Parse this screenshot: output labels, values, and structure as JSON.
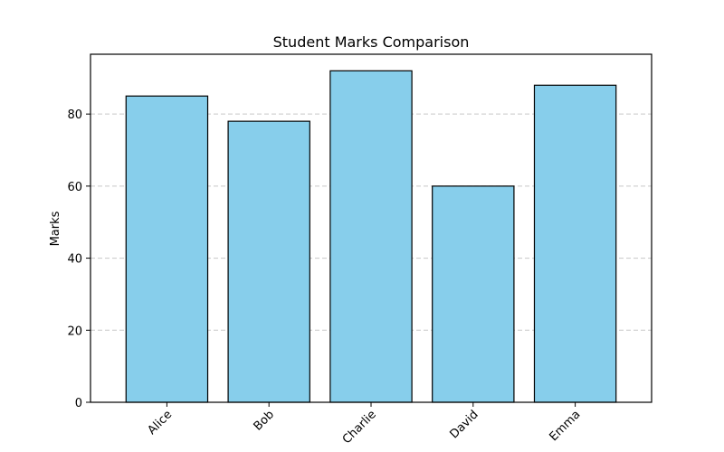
{
  "chart_data": {
    "type": "bar",
    "title": "Student Marks Comparison",
    "xlabel": "",
    "ylabel": "Marks",
    "categories": [
      "Alice",
      "Bob",
      "Charlie",
      "David",
      "Emma"
    ],
    "values": [
      85,
      78,
      92,
      60,
      88
    ],
    "ylim": [
      0,
      96.6
    ],
    "yticks": [
      "0",
      "20",
      "40",
      "60",
      "80"
    ],
    "grid": "y-dashed",
    "bar_color": "#87CEEB",
    "edge_color": "#000000"
  }
}
